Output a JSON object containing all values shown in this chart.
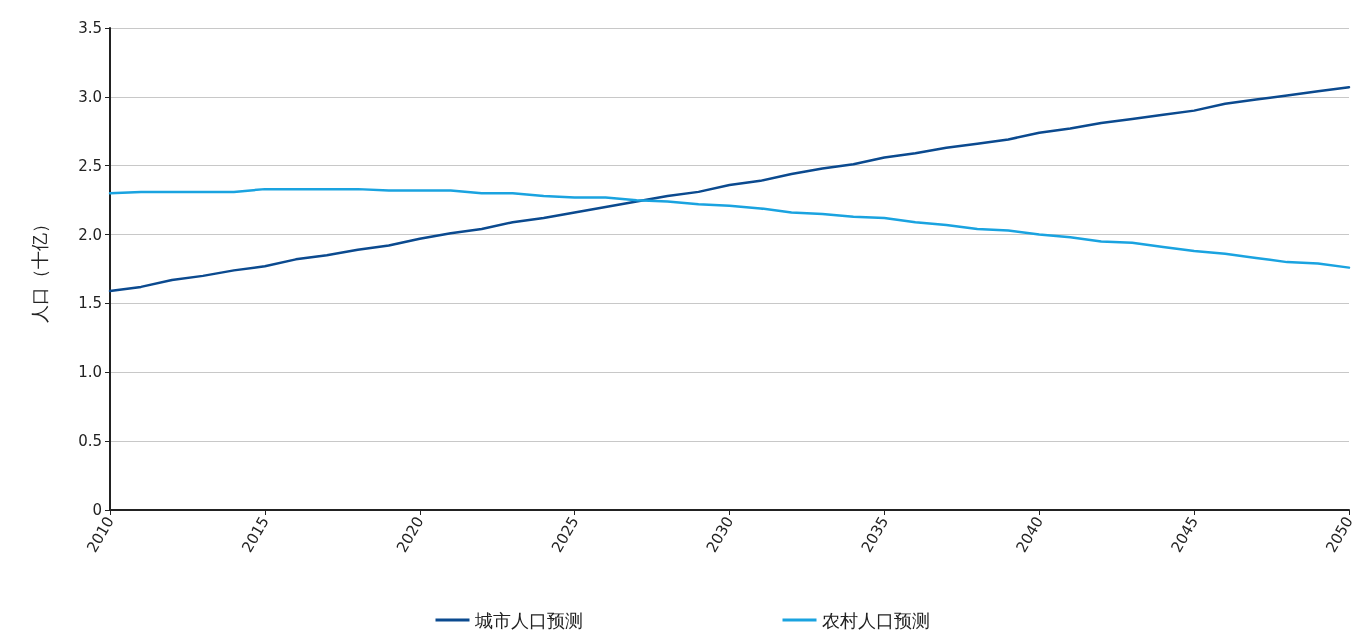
{
  "chart_data": {
    "type": "line",
    "ylabel": "人口（十亿）",
    "x": [
      2010,
      2011,
      2012,
      2013,
      2014,
      2015,
      2016,
      2017,
      2018,
      2019,
      2020,
      2021,
      2022,
      2023,
      2024,
      2025,
      2026,
      2027,
      2028,
      2029,
      2030,
      2031,
      2032,
      2033,
      2034,
      2035,
      2036,
      2037,
      2038,
      2039,
      2040,
      2041,
      2042,
      2043,
      2044,
      2045,
      2046,
      2047,
      2048,
      2049,
      2050
    ],
    "series": [
      {
        "name": "城市人口预测",
        "color": "#0b4a8f",
        "values": [
          1.59,
          1.62,
          1.67,
          1.7,
          1.74,
          1.77,
          1.82,
          1.85,
          1.89,
          1.92,
          1.97,
          2.01,
          2.04,
          2.09,
          2.12,
          2.16,
          2.2,
          2.24,
          2.28,
          2.31,
          2.36,
          2.39,
          2.44,
          2.48,
          2.51,
          2.56,
          2.59,
          2.63,
          2.66,
          2.69,
          2.74,
          2.77,
          2.81,
          2.84,
          2.87,
          2.9,
          2.95,
          2.98,
          3.01,
          3.04,
          3.07
        ]
      },
      {
        "name": "农村人口预测",
        "color": "#1aa3e0",
        "values": [
          2.3,
          2.31,
          2.31,
          2.31,
          2.31,
          2.33,
          2.33,
          2.33,
          2.33,
          2.32,
          2.32,
          2.32,
          2.3,
          2.3,
          2.28,
          2.27,
          2.27,
          2.25,
          2.24,
          2.22,
          2.21,
          2.19,
          2.16,
          2.15,
          2.13,
          2.12,
          2.09,
          2.07,
          2.04,
          2.03,
          2.0,
          1.98,
          1.95,
          1.94,
          1.91,
          1.88,
          1.86,
          1.83,
          1.8,
          1.79,
          1.76
        ]
      }
    ],
    "xlim": [
      2010,
      2050
    ],
    "xticks": [
      2010,
      2015,
      2020,
      2025,
      2030,
      2035,
      2040,
      2045,
      2050
    ],
    "ylim": [
      0,
      3.5
    ],
    "yticks": [
      0,
      0.5,
      {
        "value": 1,
        "label": "1.0"
      },
      1.5,
      {
        "value": 2,
        "label": "2.0"
      },
      2.5,
      {
        "value": 3,
        "label": "3.0"
      },
      3.5
    ],
    "grid": "y",
    "legend": "bottom",
    "marker": "none",
    "line_style": "solid"
  }
}
